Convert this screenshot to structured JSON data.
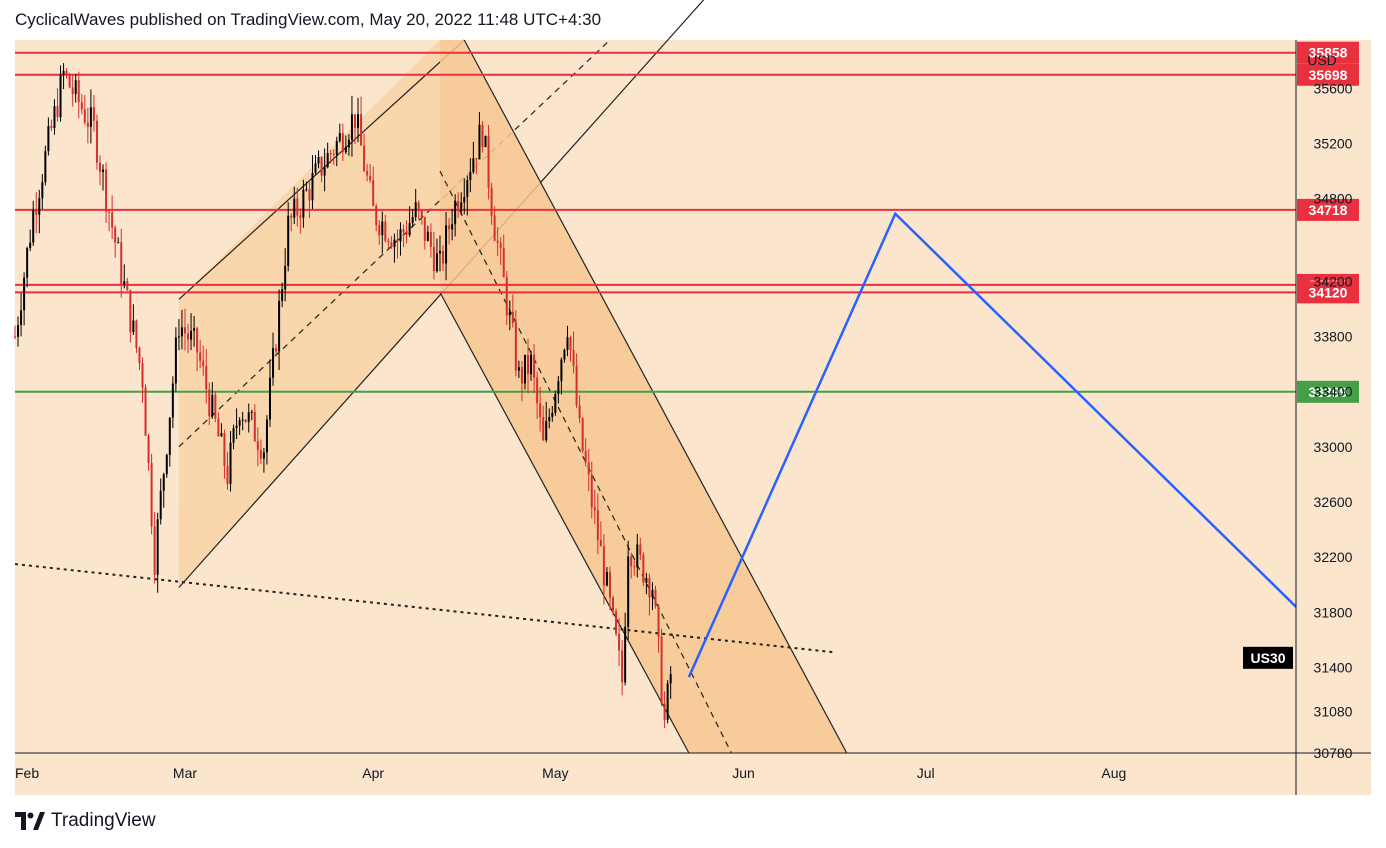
{
  "header": {
    "attribution": "CyclicalWaves published on TradingView.com, May 20, 2022 11:48 UTC+4:30"
  },
  "footer": {
    "brand": "TradingView"
  },
  "colors": {
    "chart_bg": "#fbe5cd",
    "channel_fill": "#f8d4a8",
    "channel_fill_dark": "#f6c890",
    "resistance": "#e8303f",
    "support": "#43a047",
    "projection": "#2962ff",
    "candle": "#000000",
    "candle_down": "#d32f2f",
    "symbol_badge": "#000000"
  },
  "chart_data": {
    "type": "line",
    "symbol": "US30",
    "currency": "USD",
    "x_ticks": [
      "Feb",
      "Mar",
      "Apr",
      "May",
      "Jun",
      "Jul",
      "Aug"
    ],
    "y_ticks": [
      30780,
      31080,
      31400,
      31800,
      32200,
      32600,
      33000,
      33400,
      33800,
      34200,
      34800,
      35200,
      35600
    ],
    "ylim": [
      30780,
      35950
    ],
    "horizontal_levels": [
      {
        "value": 35858,
        "label": "35858",
        "color": "#e8303f"
      },
      {
        "value": 35698,
        "label": "35698",
        "color": "#e8303f"
      },
      {
        "value": 34718,
        "label": "34718",
        "color": "#e8303f"
      },
      {
        "value": 34174,
        "label": "34174",
        "color": "#e8303f"
      },
      {
        "value": 34120,
        "label": "34120",
        "color": "#e8303f"
      },
      {
        "value": 33399,
        "label": "33399",
        "color": "#43a047"
      }
    ],
    "price_series": {
      "name": "US30",
      "x": [
        "Feb 01",
        "Feb 04",
        "Feb 09",
        "Feb 14",
        "Feb 17",
        "Feb 22",
        "Feb 24",
        "Feb 28",
        "Mar 03",
        "Mar 08",
        "Mar 10",
        "Mar 14",
        "Mar 18",
        "Mar 23",
        "Mar 29",
        "Apr 01",
        "Apr 05",
        "Apr 08",
        "Apr 12",
        "Apr 14",
        "Apr 19",
        "Apr 21",
        "Apr 25",
        "Apr 27",
        "Apr 29",
        "May 03",
        "May 05",
        "May 09",
        "May 12",
        "May 13",
        "May 17",
        "May 19",
        "May 20"
      ],
      "values": [
        33800,
        34700,
        35700,
        35300,
        34600,
        33500,
        32200,
        33900,
        33700,
        32800,
        33300,
        33000,
        34600,
        35000,
        35400,
        34700,
        34500,
        34700,
        34300,
        34700,
        35300,
        34600,
        33500,
        33600,
        33000,
        33900,
        33100,
        32100,
        31300,
        32300,
        32000,
        31000,
        31350
      ]
    },
    "projection": {
      "x": [
        "May 23",
        "Jun 26",
        "Aug 31"
      ],
      "values": [
        31330,
        34690,
        31840
      ]
    },
    "channels": [
      {
        "name": "",
        "direction": "up"
      },
      {
        "name": "",
        "direction": "down"
      }
    ]
  }
}
